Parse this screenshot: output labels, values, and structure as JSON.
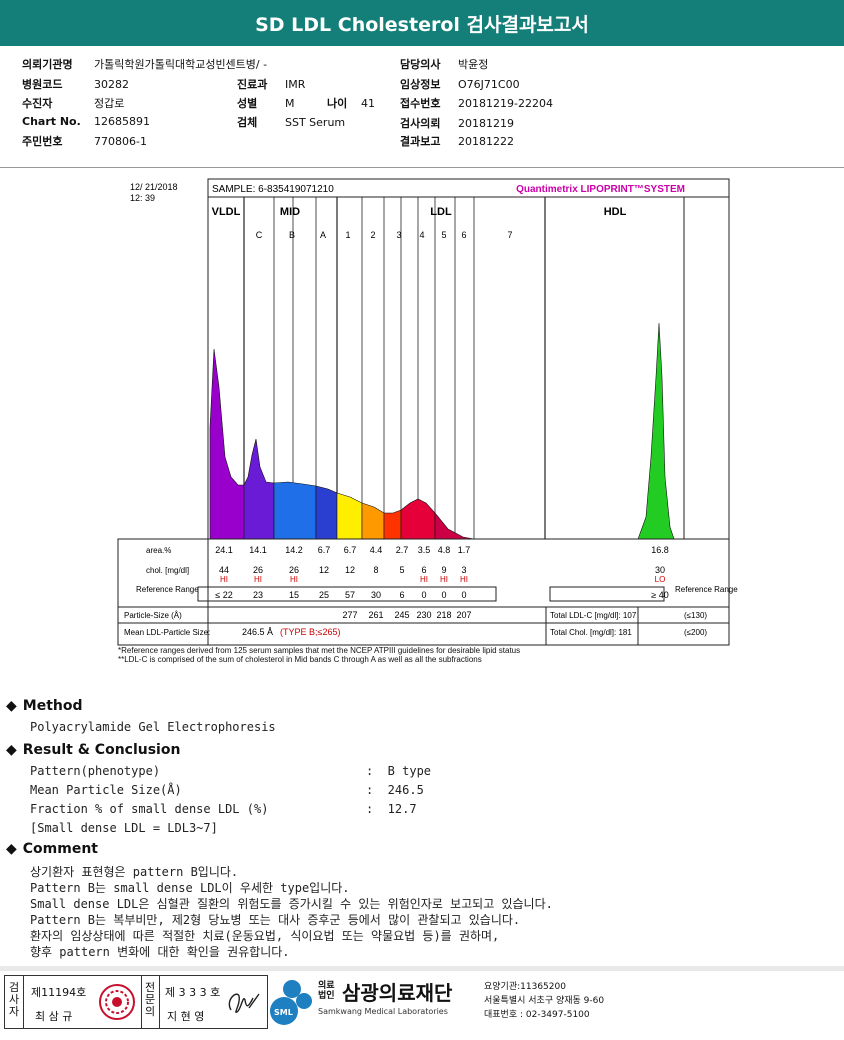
{
  "title": "SD LDL Cholesterol 검사결과보고서",
  "info": {
    "institution_label": "의뢰기관명",
    "institution": "가톨릭학원가톨릭대학교성빈센트병/ -",
    "doctor_label": "담당의사",
    "doctor": "박윤정",
    "hospital_code_label": "병원코드",
    "hospital_code": "30282",
    "dept_label": "진료과",
    "dept": "IMR",
    "clinical_label": "임상정보",
    "clinical": "O76J71C00",
    "patient_label": "수진자",
    "patient": "정갑로",
    "sex_label": "성별",
    "sex": "M",
    "age_label": "나이",
    "age": "41",
    "receipt_label": "접수번호",
    "receipt": "20181219-22204",
    "chart_label": "Chart No.",
    "chart": "12685891",
    "specimen_label": "검체",
    "specimen": "SST Serum",
    "request_label": "검사의뢰",
    "request": "20181219",
    "resident_label": "주민번호",
    "resident": "770806-1",
    "report_label": "결과보고",
    "report": "20181222"
  },
  "chart_data": {
    "type": "area",
    "date": "12/ 21/2018",
    "time": "12: 39",
    "sample": "SAMPLE:   6-835419071210",
    "brand": "Quantimetrix LIPOPRINT™SYSTEM",
    "groups": [
      "VLDL",
      "MID",
      "LDL",
      "HDL"
    ],
    "bands": [
      "C",
      "B",
      "A",
      "1",
      "2",
      "3",
      "4",
      "5",
      "6",
      "7"
    ],
    "row_labels": [
      "area.%",
      "chol. [mg/dl]",
      "Reference Range",
      "Particle-Size (Å)",
      "Mean LDL-Particle Size:"
    ],
    "fractions": [
      "VLDL",
      "C",
      "B",
      "A",
      "1",
      "2",
      "3",
      "4",
      "5",
      "6",
      "HDL"
    ],
    "area_pct": [
      "24.1",
      "14.1",
      "14.2",
      "6.7",
      "6.7",
      "4.4",
      "2.7",
      "3.5",
      "4.8",
      "1.7",
      "16.8"
    ],
    "chol": [
      "44",
      "26",
      "26",
      "12",
      "12",
      "8",
      "5",
      "6",
      "9",
      "3",
      "30"
    ],
    "flags": [
      "HI",
      "HI",
      "HI",
      "",
      "",
      "",
      "",
      "HI",
      "HI",
      "HI",
      "LO"
    ],
    "reference": [
      "≤ 22",
      "23",
      "15",
      "25",
      "57",
      "30",
      "6",
      "0",
      "0",
      "0",
      "≥ 40"
    ],
    "particle_size": [
      "277",
      "261",
      "245",
      "230",
      "218",
      "207"
    ],
    "mean_size": "246.5 Å",
    "type_note": "(TYPE B;≤265)",
    "total_ldl": "Total LDL-C [mg/dl]:  107",
    "total_ldl_ref": "(≤130)",
    "total_chol": "Total Chol. [mg/dl]:  181",
    "total_chol_ref": "(≤200)",
    "ref_right": "Reference Range",
    "colors": [
      "#9900cc",
      "#6a1bd6",
      "#1f6fe8",
      "#2a3fd0",
      "#ffee00",
      "#ff9900",
      "#ff3300",
      "#e6003a",
      "#cc0044",
      "#bb0033",
      "#22cc22"
    ]
  },
  "notes": {
    "n1": "*Reference ranges derived from 125 serum samples that met the NCEP ATPIII guidelines for desirable lipid status",
    "n2": "**LDL-C is comprised of the sum of cholesterol in Mid bands C through A as well as all the subfractions"
  },
  "method": {
    "title": "Method",
    "text": "Polyacrylamide Gel Electrophoresis"
  },
  "result": {
    "title": "Result & Conclusion",
    "l1": "Pattern(phenotype)",
    "v1": ":  B type",
    "l2": "Mean Particle Size(Å)",
    "v2": ":  246.5",
    "l3": "Fraction % of small dense LDL (%)",
    "v3": ":  12.7",
    "l4": "[Small dense LDL = LDL3~7]"
  },
  "comment": {
    "title": "Comment",
    "c1": "상기환자 표현형은 pattern B입니다.",
    "c2": "Pattern B는 small dense LDL이 우세한 type입니다.",
    "c3": "Small dense LDL은 심혈관 질환의 위험도를 증가시킬 수 있는 위험인자로 보고되고 있습니다.",
    "c4": "Pattern B는 복부비만, 제2형 당뇨병 또는 대사 증후군 등에서 많이 관찰되고 있습니다.",
    "c5": "환자의 임상상태에 따른 적절한 치료(운동요법, 식이요법 또는 약물요법 등)를 권하며,",
    "c6": "향후 pattern 변화에 대한 확인을 권유합니다."
  },
  "footer": {
    "v1": "검사자",
    "lic1": "제11194호",
    "name1": "최 삼 규",
    "v2": "전문의",
    "lic2": "제 3 3 3 호",
    "name2": "지 현 영",
    "logo_small": "SML",
    "legal": "의료법인",
    "org": "삼광의료재단",
    "org_en": "Samkwang Medical Laboratories",
    "a1": "요양기관:11365200",
    "a2": "서울특별시 서초구 양재동 9-60",
    "a3": "대표번호 : 02-3497-5100"
  }
}
